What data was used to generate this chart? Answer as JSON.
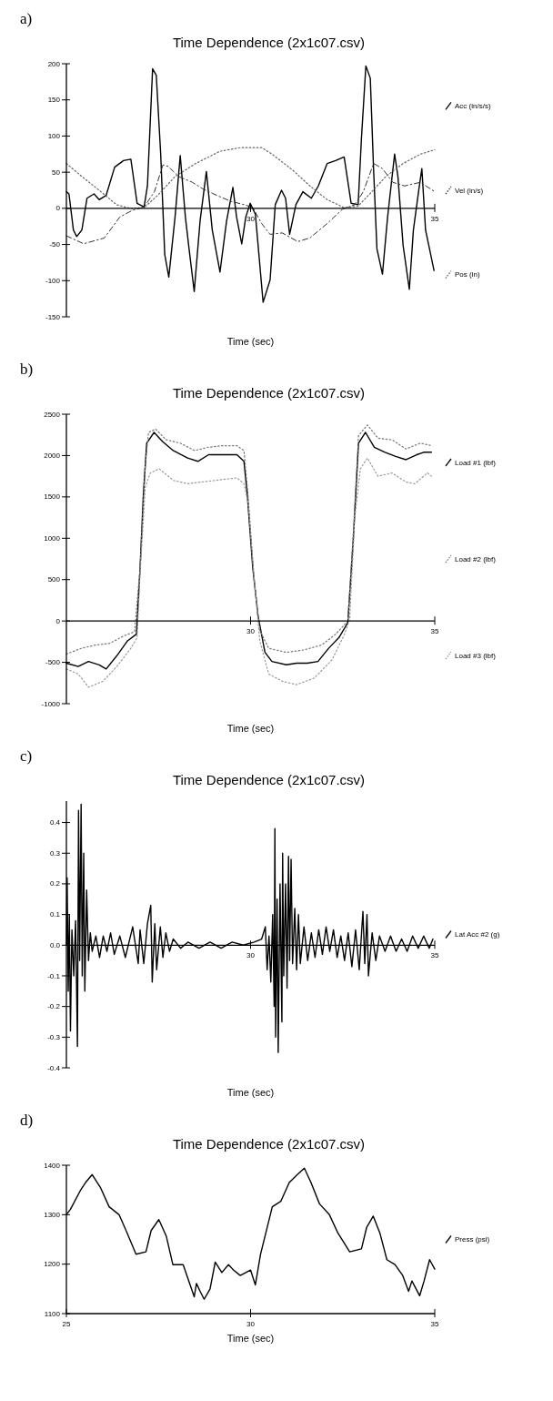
{
  "chart_data": [
    {
      "type": "line",
      "annotations": [
        "a)"
      ],
      "title": "Time Dependence (2x1c07.csv)",
      "xlabel": "Time (sec)",
      "xlim": [
        25,
        35
      ],
      "xticks": [
        30,
        35
      ],
      "ylim": [
        -150,
        200
      ],
      "yticks": [
        -150,
        -100,
        -50,
        0,
        50,
        100,
        150,
        200
      ],
      "legend": "right",
      "series": [
        {
          "name": "Acc (in/s/s)",
          "color": "#000000",
          "line_style": "solid",
          "x": [
            25,
            25.07,
            25.19,
            25.28,
            25.42,
            25.56,
            25.75,
            25.89,
            26.08,
            26.31,
            26.55,
            26.75,
            26.92,
            27.11,
            27.2,
            27.34,
            27.44,
            27.56,
            27.67,
            27.78,
            27.95,
            28.09,
            28.23,
            28.33,
            28.47,
            28.63,
            28.8,
            28.96,
            29.17,
            29.35,
            29.52,
            29.62,
            29.76,
            29.87,
            29.99,
            30.13,
            30.34,
            30.53,
            30.67,
            30.84,
            30.95,
            31.06,
            31.23,
            31.42,
            31.65,
            31.84,
            32.08,
            32.31,
            32.54,
            32.73,
            32.92,
            33.01,
            33.13,
            33.25,
            33.34,
            33.43,
            33.58,
            33.72,
            33.91,
            34,
            34.14,
            34.31,
            34.42,
            34.56,
            34.65,
            34.75,
            34.89,
            34.98
          ],
          "values": [
            23,
            20,
            -30,
            -39,
            -30,
            14,
            20,
            12,
            18,
            57,
            66,
            68,
            7,
            2,
            31,
            193,
            184,
            75,
            -64,
            -95,
            -12,
            73,
            -12,
            -56,
            -115,
            -17,
            51,
            -30,
            -88,
            -17,
            29,
            -12,
            -49,
            -12,
            7,
            -8,
            -130,
            -99,
            5,
            25,
            14,
            -36,
            5,
            23,
            14,
            31,
            62,
            66,
            71,
            7,
            5,
            97,
            197,
            180,
            53,
            -56,
            -91,
            -12,
            75,
            44,
            -51,
            -112,
            -30,
            23,
            55,
            -30,
            -64,
            -86
          ]
        },
        {
          "name": "Vel (in/s)",
          "color": "#333333",
          "line_style": "dashed",
          "x": [
            25,
            25.47,
            26.03,
            26.45,
            26.78,
            27.11,
            27.39,
            27.62,
            27.76,
            28.05,
            28.42,
            28.7,
            29.08,
            29.45,
            29.83,
            30.06,
            30.3,
            30.53,
            30.86,
            31.28,
            31.61,
            32.08,
            32.5,
            32.83,
            33.06,
            33.34,
            33.58,
            33.86,
            34.18,
            34.61,
            35
          ],
          "values": [
            -38,
            -49,
            -41,
            -12,
            -3,
            2,
            23,
            60,
            58,
            44,
            36,
            27,
            18,
            10,
            5,
            1,
            -21,
            -36,
            -34,
            -46,
            -41,
            -21,
            -1,
            5,
            23,
            62,
            55,
            36,
            31,
            36,
            23
          ]
        },
        {
          "name": "Pos (in)",
          "color": "#666666",
          "line_style": "dotted",
          "x": [
            25,
            25.42,
            25.89,
            26.36,
            26.73,
            27.11,
            27.48,
            27.95,
            28.51,
            29.17,
            29.73,
            30.3,
            30.58,
            31.14,
            31.61,
            32.08,
            32.54,
            32.92,
            33.29,
            33.67,
            34.14,
            34.61,
            35
          ],
          "values": [
            62,
            44,
            25,
            5,
            0,
            1,
            18,
            44,
            62,
            79,
            84,
            84,
            75,
            53,
            31,
            12,
            1,
            3,
            23,
            44,
            62,
            75,
            81
          ]
        }
      ]
    },
    {
      "type": "line",
      "annotations": [
        "b)"
      ],
      "title": "Time Dependence (2x1c07.csv)",
      "xlabel": "Time (sec)",
      "xlim": [
        25,
        35
      ],
      "xticks": [
        30,
        35
      ],
      "ylim": [
        -1000,
        2500
      ],
      "yticks": [
        -1000,
        -500,
        0,
        500,
        1000,
        1500,
        2000,
        2500
      ],
      "legend": "right",
      "series": [
        {
          "name": "Load #1 (lbf)",
          "color": "#000000",
          "line_style": "solid",
          "x": [
            25,
            25.32,
            25.6,
            25.89,
            26.08,
            26.37,
            26.66,
            26.9,
            27,
            27.09,
            27.18,
            27.38,
            27.61,
            27.9,
            28.29,
            28.57,
            28.86,
            29.24,
            29.63,
            29.82,
            29.91,
            30.06,
            30.2,
            30.39,
            30.58,
            30.97,
            31.25,
            31.54,
            31.83,
            32.12,
            32.4,
            32.64,
            32.79,
            32.93,
            33.12,
            33.36,
            33.65,
            33.94,
            34.22,
            34.51,
            34.7,
            34.91
          ],
          "values": [
            -510,
            -550,
            -490,
            -530,
            -580,
            -420,
            -240,
            -160,
            640,
            1530,
            2150,
            2280,
            2170,
            2060,
            1970,
            1930,
            2010,
            2010,
            2010,
            1930,
            1530,
            640,
            70,
            -380,
            -490,
            -530,
            -510,
            -510,
            -490,
            -330,
            -200,
            -20,
            1000,
            2150,
            2280,
            2100,
            2040,
            1990,
            1950,
            2010,
            2040,
            2040
          ]
        },
        {
          "name": "Load #2 (lbf)",
          "color": "#777777",
          "line_style": "dotted",
          "x": [
            25,
            25.41,
            25.8,
            26.18,
            26.56,
            26.85,
            27,
            27.14,
            27.23,
            27.42,
            27.71,
            28.09,
            28.48,
            28.86,
            29.24,
            29.63,
            29.82,
            29.93,
            30.09,
            30.25,
            30.49,
            30.97,
            31.45,
            31.93,
            32.31,
            32.64,
            32.79,
            32.93,
            33.17,
            33.46,
            33.84,
            34.22,
            34.61,
            34.91
          ],
          "values": [
            -400,
            -330,
            -290,
            -270,
            -180,
            -130,
            640,
            1880,
            2280,
            2320,
            2190,
            2150,
            2060,
            2100,
            2120,
            2120,
            2060,
            1530,
            550,
            -110,
            -330,
            -380,
            -350,
            -290,
            -160,
            0,
            1080,
            2240,
            2370,
            2210,
            2190,
            2080,
            2150,
            2120
          ]
        },
        {
          "name": "Load #3 (lbf)",
          "color": "#999999",
          "line_style": "dotted",
          "x": [
            25,
            25.32,
            25.6,
            25.99,
            26.37,
            26.75,
            26.92,
            27,
            27.14,
            27.28,
            27.52,
            27.9,
            28.29,
            28.67,
            29.05,
            29.63,
            29.82,
            29.93,
            30.09,
            30.25,
            30.49,
            30.87,
            31.25,
            31.73,
            32.21,
            32.55,
            32.69,
            32.83,
            32.98,
            33.17,
            33.46,
            33.84,
            34.22,
            34.46,
            34.8,
            34.91
          ],
          "values": [
            -580,
            -640,
            -800,
            -730,
            -550,
            -330,
            -200,
            550,
            1620,
            1790,
            1840,
            1700,
            1660,
            1680,
            1700,
            1730,
            1660,
            1440,
            550,
            -240,
            -640,
            -730,
            -770,
            -690,
            -470,
            -160,
            20,
            1260,
            1840,
            1970,
            1750,
            1790,
            1680,
            1660,
            1790,
            1750
          ]
        }
      ]
    },
    {
      "type": "line",
      "annotations": [
        "c)"
      ],
      "title": "Time Dependence (2x1c07.csv)",
      "xlabel": "Time (sec)",
      "xlim": [
        25,
        35
      ],
      "xticks": [
        30,
        35
      ],
      "ylim": [
        -0.4,
        0.47
      ],
      "yticks": [
        -0.4,
        -0.3,
        -0.2,
        -0.1,
        {
          "value": 0,
          "label": "0.0"
        },
        0.1,
        0.2,
        0.3,
        0.4
      ],
      "legend": "right",
      "series": [
        {
          "name": "Lat Acc #2 (g)",
          "color": "#000000",
          "line_style": "solid",
          "x": [
            25,
            25.02,
            25.05,
            25.08,
            25.11,
            25.15,
            25.2,
            25.25,
            25.3,
            25.33,
            25.36,
            25.4,
            25.43,
            25.47,
            25.5,
            25.55,
            25.6,
            25.65,
            25.7,
            25.8,
            25.9,
            26,
            26.1,
            26.2,
            26.3,
            26.45,
            26.6,
            26.8,
            26.95,
            27,
            27.1,
            27.2,
            27.29,
            27.33,
            27.4,
            27.45,
            27.55,
            27.62,
            27.7,
            27.8,
            27.9,
            28.1,
            28.3,
            28.6,
            28.9,
            29.2,
            29.5,
            29.8,
            30.1,
            30.3,
            30.4,
            30.45,
            30.5,
            30.55,
            30.6,
            30.64,
            30.66,
            30.68,
            30.72,
            30.75,
            30.8,
            30.85,
            30.87,
            30.9,
            30.95,
            30.99,
            31.03,
            31.06,
            31.1,
            31.14,
            31.2,
            31.25,
            31.3,
            31.35,
            31.45,
            31.55,
            31.65,
            31.75,
            31.85,
            31.95,
            32.05,
            32.15,
            32.25,
            32.35,
            32.45,
            32.55,
            32.65,
            32.75,
            32.85,
            32.95,
            33.05,
            33.1,
            33.16,
            33.2,
            33.3,
            33.4,
            33.5,
            33.65,
            33.8,
            33.95,
            34.1,
            34.25,
            34.4,
            34.55,
            34.7,
            34.85,
            34.95
          ],
          "values": [
            0,
            0.22,
            -0.15,
            0.1,
            -0.28,
            0.05,
            -0.1,
            0.08,
            -0.33,
            0.44,
            -0.05,
            0.46,
            -0.1,
            0.3,
            -0.15,
            0.18,
            -0.05,
            0.04,
            -0.02,
            0.03,
            -0.04,
            0.03,
            -0.02,
            0.04,
            -0.03,
            0.03,
            -0.04,
            0.06,
            -0.06,
            0.05,
            -0.06,
            0.07,
            0.13,
            -0.12,
            0.07,
            -0.08,
            0.06,
            -0.04,
            0.04,
            -0.02,
            0.02,
            -0.01,
            0.01,
            -0.01,
            0.01,
            -0.01,
            0.01,
            0,
            0.01,
            0.02,
            0.06,
            -0.08,
            0.03,
            -0.12,
            0.1,
            -0.2,
            0.38,
            -0.3,
            0.15,
            -0.35,
            0.2,
            -0.25,
            0.3,
            -0.1,
            0.2,
            -0.14,
            0.29,
            -0.05,
            0.28,
            -0.06,
            0.12,
            -0.08,
            0.1,
            -0.06,
            0.06,
            -0.05,
            0.04,
            -0.04,
            0.05,
            -0.03,
            0.06,
            -0.02,
            0.05,
            -0.04,
            0.03,
            -0.05,
            0.04,
            -0.07,
            0.05,
            -0.08,
            0.11,
            -0.06,
            0.1,
            -0.1,
            0.04,
            -0.05,
            0.03,
            -0.02,
            0.03,
            -0.02,
            0.02,
            -0.02,
            0.03,
            -0.01,
            0.03,
            -0.01,
            0.02
          ]
        }
      ]
    },
    {
      "type": "line",
      "annotations": [
        "d)"
      ],
      "title": "Time Dependence (2x1c07.csv)",
      "xlabel": "Time (sec)",
      "xlim": [
        25,
        35
      ],
      "xticks": [
        25,
        30,
        35
      ],
      "ylim": [
        1100,
        1400
      ],
      "yticks": [
        1100,
        1200,
        1300,
        1400
      ],
      "legend": "right",
      "series": [
        {
          "name": "Press (psi)",
          "color": "#000000",
          "line_style": "solid",
          "x": [
            25,
            25.11,
            25.38,
            25.52,
            25.7,
            25.93,
            26.16,
            26.43,
            26.62,
            26.89,
            27.16,
            27.3,
            27.51,
            27.71,
            27.89,
            28.17,
            28.47,
            28.53,
            28.63,
            28.74,
            28.9,
            29.04,
            29.22,
            29.4,
            29.54,
            29.72,
            30,
            30.13,
            30.27,
            30.59,
            30.82,
            31.05,
            31.27,
            31.46,
            31.64,
            31.87,
            32.14,
            32.37,
            32.69,
            33.01,
            33.15,
            33.33,
            33.51,
            33.7,
            33.92,
            34.13,
            34.29,
            34.38,
            34.59,
            34.71,
            34.86,
            35
          ],
          "values": [
            1300,
            1311,
            1349,
            1365,
            1381,
            1354,
            1316,
            1300,
            1268,
            1220,
            1225,
            1268,
            1290,
            1257,
            1199,
            1199,
            1134,
            1161,
            1145,
            1129,
            1150,
            1204,
            1183,
            1199,
            1188,
            1177,
            1188,
            1158,
            1220,
            1316,
            1327,
            1365,
            1381,
            1394,
            1365,
            1322,
            1300,
            1263,
            1225,
            1231,
            1274,
            1297,
            1263,
            1209,
            1199,
            1177,
            1145,
            1166,
            1136,
            1166,
            1209,
            1190
          ]
        }
      ]
    }
  ]
}
